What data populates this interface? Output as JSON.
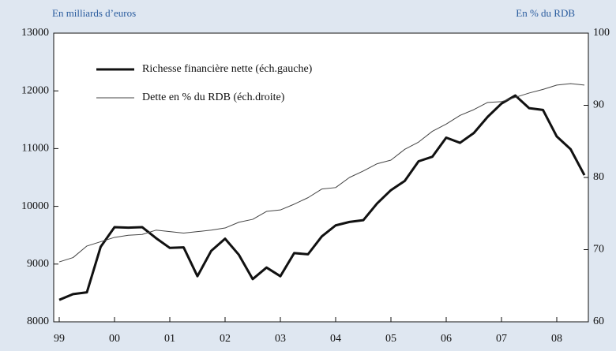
{
  "chart_data": {
    "type": "line",
    "y_label": "En milliards d’euros",
    "y2_label": "En % du RDB",
    "categories": [
      "99",
      null,
      null,
      null,
      "00",
      null,
      null,
      null,
      "01",
      null,
      null,
      null,
      "02",
      null,
      null,
      null,
      "03",
      null,
      null,
      null,
      "04",
      null,
      null,
      null,
      "05",
      null,
      null,
      null,
      "06",
      null,
      null,
      null,
      "07",
      null,
      null,
      null,
      "08",
      null,
      null
    ],
    "series": [
      {
        "name": "Richesse financière nette (éch.gauche)",
        "color": "#111111",
        "width": 3,
        "values": [
          8380,
          8480,
          8510,
          9300,
          9640,
          9630,
          9640,
          9450,
          9280,
          9290,
          8790,
          9230,
          9440,
          9160,
          8740,
          8940,
          8790,
          9190,
          9170,
          9480,
          9670,
          9730,
          9760,
          10050,
          10280,
          10440,
          10780,
          10860,
          11190,
          11100,
          11270,
          11550,
          11780,
          11920,
          11700,
          11670,
          11210,
          10990,
          10540
        ]
      },
      {
        "name": "Dette en % du RDB (éch.droite)",
        "color": "#444444",
        "width": 1,
        "axis": "y2",
        "values": [
          68.3,
          68.9,
          70.5,
          71.1,
          71.7,
          72.0,
          72.1,
          72.7,
          72.5,
          72.3,
          72.5,
          72.7,
          73.0,
          73.8,
          74.2,
          75.3,
          75.5,
          76.3,
          77.2,
          78.4,
          78.6,
          80.0,
          80.9,
          81.9,
          82.4,
          83.9,
          84.9,
          86.4,
          87.4,
          88.6,
          89.4,
          90.4,
          90.5,
          91.1,
          91.7,
          92.2,
          92.8,
          93.0,
          92.8
        ]
      }
    ],
    "ylim": [
      8000,
      13000
    ],
    "yticks": [
      8000,
      9000,
      10000,
      11000,
      12000,
      13000
    ],
    "y2lim": [
      60,
      100
    ],
    "y2ticks": [
      60,
      70,
      80,
      90,
      100
    ]
  }
}
